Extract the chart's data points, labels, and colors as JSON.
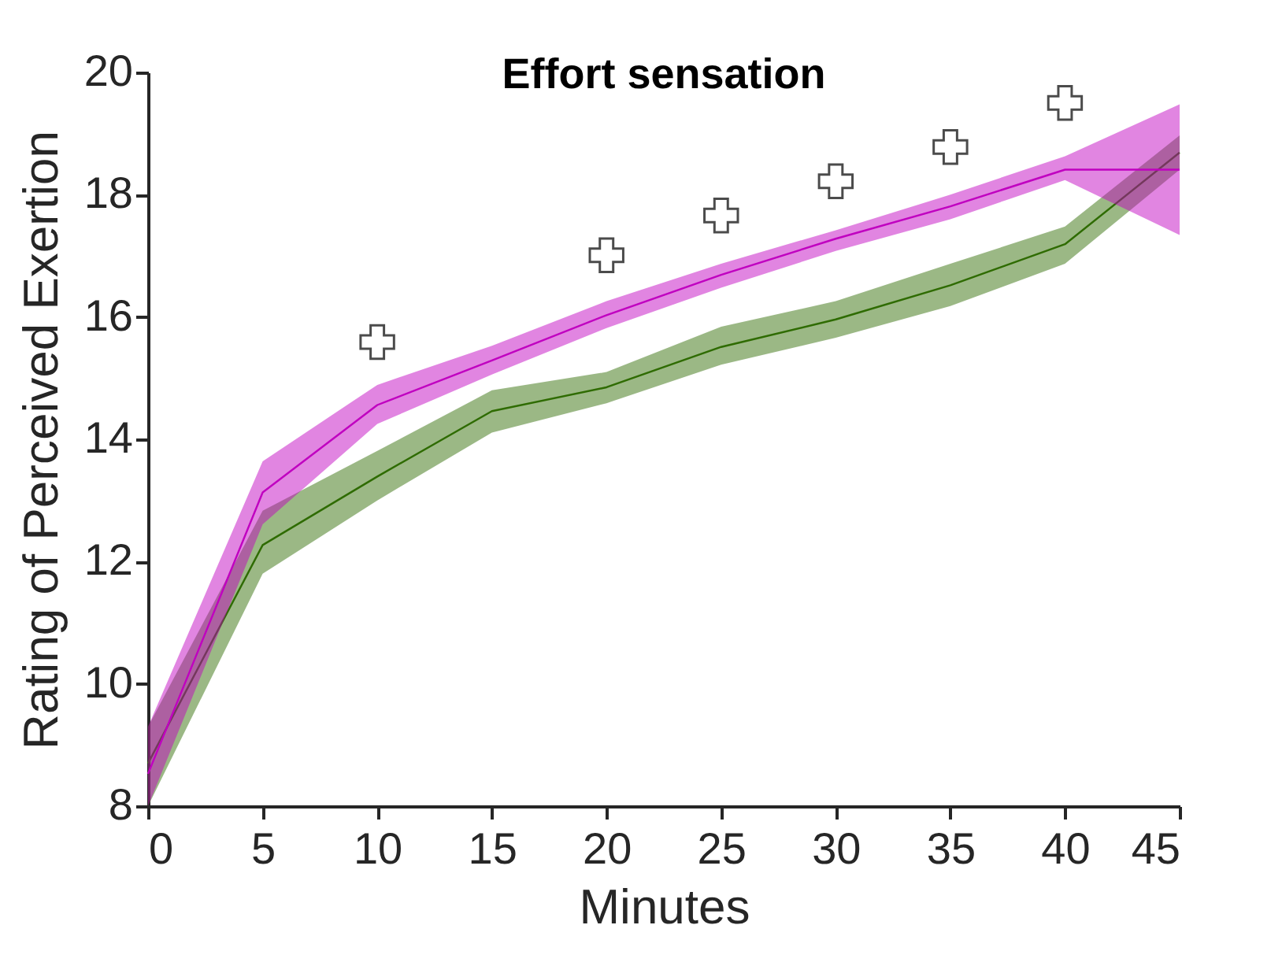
{
  "chart_data": {
    "type": "line",
    "title": "Effort sensation",
    "xlabel": "Minutes",
    "ylabel": "Rating of Perceived Exertion",
    "x": [
      0,
      5,
      10,
      15,
      20,
      25,
      30,
      35,
      40,
      45
    ],
    "series": [
      {
        "color": "#2e6b00",
        "values": [
          8.7,
          12.27,
          13.39,
          14.46,
          14.85,
          15.51,
          15.96,
          16.52,
          17.19,
          18.69
        ],
        "lower": [
          8.0,
          11.8,
          13.0,
          14.11,
          14.59,
          15.22,
          15.66,
          16.18,
          16.87,
          18.41
        ],
        "upper": [
          9.3,
          12.83,
          13.81,
          14.8,
          15.1,
          15.84,
          16.26,
          16.87,
          17.48,
          18.97
        ]
      },
      {
        "color": "#c000c0",
        "values": [
          8.53,
          13.13,
          14.56,
          15.29,
          16.03,
          16.69,
          17.28,
          17.81,
          18.41,
          18.41
        ],
        "lower": [
          8.0,
          12.61,
          14.25,
          15.06,
          15.82,
          16.48,
          17.08,
          17.6,
          18.24,
          17.34
        ],
        "upper": [
          9.3,
          13.64,
          14.89,
          15.53,
          16.26,
          16.87,
          17.42,
          18.0,
          18.63,
          19.48
        ]
      },
      {
        "type": "scatter",
        "color": "#000000",
        "marker": "cross",
        "x": [
          10,
          20,
          25,
          30,
          35,
          40
        ],
        "values": [
          15.59,
          17.01,
          17.66,
          18.22,
          18.78,
          19.5
        ]
      }
    ],
    "xlim": [
      0,
      45
    ],
    "xticks": [
      0,
      5,
      10,
      15,
      20,
      25,
      30,
      35,
      40,
      45
    ],
    "ylim": [
      8,
      20
    ],
    "yticks": [
      8,
      10,
      12,
      14,
      16,
      18,
      20
    ],
    "grid": false,
    "line_style": "solid"
  }
}
